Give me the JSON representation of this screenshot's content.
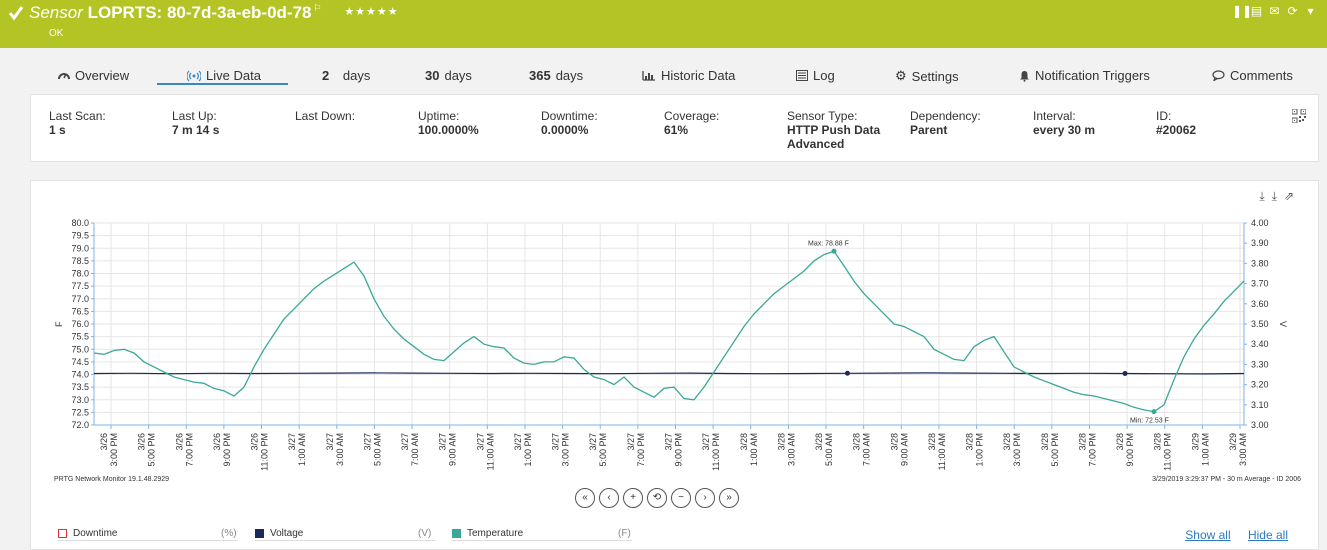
{
  "header": {
    "kind": "Sensor",
    "name": "LOPRTS: 80-7d-3a-eb-0d-78",
    "stars": "★★★★★",
    "status": "OK",
    "bg_color": "#b4c424"
  },
  "tabs": [
    {
      "label": "Overview",
      "icon": "overview-gauge-icon"
    },
    {
      "label": "Live Data",
      "icon": "live-data-broadcast-icon"
    },
    {
      "num": "2",
      "unit": "days"
    },
    {
      "num": "30",
      "unit": "days"
    },
    {
      "num": "365",
      "unit": "days"
    },
    {
      "label": "Historic Data",
      "icon": "bar-chart-icon"
    },
    {
      "label": "Log",
      "icon": "log-list-icon"
    },
    {
      "label": "Settings",
      "icon": "gear-icon"
    },
    {
      "label": "Notification Triggers",
      "icon": "bell-icon"
    },
    {
      "label": "Comments",
      "icon": "comment-icon"
    }
  ],
  "info": [
    {
      "label": "Last Scan:",
      "value": "1 s"
    },
    {
      "label": "Last Up:",
      "value": "7 m 14 s"
    },
    {
      "label": "Last Down:",
      "value": ""
    },
    {
      "label": "Uptime:",
      "value": "100.0000%"
    },
    {
      "label": "Downtime:",
      "value": "0.0000%"
    },
    {
      "label": "Coverage:",
      "value": "61%"
    },
    {
      "label": "Sensor Type:",
      "value": "HTTP Push Data Advanced"
    },
    {
      "label": "Dependency:",
      "value": "Parent"
    },
    {
      "label": "Interval:",
      "value": "every 30 m"
    },
    {
      "label": "ID:",
      "value": "#20062"
    }
  ],
  "footer": {
    "left": "PRTG Network Monitor 19.1.48.2929",
    "right": "3/29/2019 3:29:37 PM - 30 m Average - ID 2006"
  },
  "nav_buttons": [
    "«",
    "‹",
    "+",
    "⟲",
    "−",
    "›",
    "»"
  ],
  "legend": [
    {
      "name": "Downtime",
      "unit": "(%)",
      "color": "#e03030",
      "filled": false
    },
    {
      "name": "Voltage",
      "unit": "(V)",
      "color": "#1a2a5c",
      "filled": true
    },
    {
      "name": "Temperature",
      "unit": "(F)",
      "color": "#3aa898",
      "filled": true
    }
  ],
  "links": {
    "show_all": "Show all",
    "hide_all": "Hide all"
  },
  "chart_data": {
    "type": "line",
    "left_axis": {
      "label": "F",
      "min": 72.0,
      "max": 80.0,
      "ticks": [
        "72.0",
        "72.5",
        "73.0",
        "73.5",
        "74.0",
        "74.5",
        "75.0",
        "75.5",
        "76.0",
        "76.5",
        "77.0",
        "77.5",
        "78.0",
        "78.5",
        "79.0",
        "79.5",
        "80.0"
      ]
    },
    "right_axis": {
      "label": "V",
      "min": 3.0,
      "max": 4.0,
      "ticks": [
        "3.00",
        "3.10",
        "3.20",
        "3.30",
        "3.40",
        "3.50",
        "3.60",
        "3.70",
        "3.80",
        "3.90",
        "4.00"
      ]
    },
    "x_labels": [
      [
        "3/26",
        "3:00 PM"
      ],
      [
        "3/26",
        "5:00 PM"
      ],
      [
        "3/26",
        "7:00 PM"
      ],
      [
        "3/26",
        "9:00 PM"
      ],
      [
        "3/26",
        "11:00 PM"
      ],
      [
        "3/27",
        "1:00 AM"
      ],
      [
        "3/27",
        "3:00 AM"
      ],
      [
        "3/27",
        "5:00 AM"
      ],
      [
        "3/27",
        "7:00 AM"
      ],
      [
        "3/27",
        "9:00 AM"
      ],
      [
        "3/27",
        "11:00 AM"
      ],
      [
        "3/27",
        "1:00 PM"
      ],
      [
        "3/27",
        "3:00 PM"
      ],
      [
        "3/27",
        "5:00 PM"
      ],
      [
        "3/27",
        "7:00 PM"
      ],
      [
        "3/27",
        "9:00 PM"
      ],
      [
        "3/27",
        "11:00 PM"
      ],
      [
        "3/28",
        "1:00 AM"
      ],
      [
        "3/28",
        "3:00 AM"
      ],
      [
        "3/28",
        "5:00 AM"
      ],
      [
        "3/28",
        "7:00 AM"
      ],
      [
        "3/28",
        "9:00 AM"
      ],
      [
        "3/28",
        "11:00 AM"
      ],
      [
        "3/28",
        "1:00 PM"
      ],
      [
        "3/28",
        "3:00 PM"
      ],
      [
        "3/28",
        "5:00 PM"
      ],
      [
        "3/28",
        "7:00 PM"
      ],
      [
        "3/28",
        "9:00 PM"
      ],
      [
        "3/28",
        "11:00 PM"
      ],
      [
        "3/29",
        "1:00 AM"
      ],
      [
        "3/29",
        "3:00 AM"
      ]
    ],
    "series": [
      {
        "name": "Temperature",
        "unit": "F",
        "axis": "left",
        "color": "#3aa898",
        "values": [
          74.85,
          74.8,
          74.95,
          75.0,
          74.85,
          74.5,
          74.3,
          74.1,
          73.9,
          73.8,
          73.7,
          73.65,
          73.45,
          73.35,
          73.15,
          73.5,
          74.3,
          75.0,
          75.6,
          76.2,
          76.6,
          77.0,
          77.4,
          77.7,
          77.95,
          78.2,
          78.45,
          77.9,
          77.0,
          76.3,
          75.8,
          75.4,
          75.1,
          74.8,
          74.6,
          74.55,
          74.9,
          75.25,
          75.5,
          75.2,
          75.1,
          75.05,
          74.65,
          74.45,
          74.4,
          74.5,
          74.5,
          74.7,
          74.65,
          74.2,
          73.9,
          73.8,
          73.6,
          73.9,
          73.5,
          73.3,
          73.1,
          73.45,
          73.5,
          73.05,
          73.0,
          73.5,
          74.1,
          74.7,
          75.3,
          75.9,
          76.4,
          76.8,
          77.2,
          77.5,
          77.8,
          78.1,
          78.5,
          78.75,
          78.88,
          78.3,
          77.7,
          77.2,
          76.8,
          76.4,
          76.0,
          75.9,
          75.7,
          75.5,
          75.0,
          74.8,
          74.6,
          74.55,
          75.1,
          75.35,
          75.5,
          74.9,
          74.3,
          74.1,
          73.9,
          73.75,
          73.6,
          73.45,
          73.3,
          73.2,
          73.15,
          73.05,
          72.95,
          72.85,
          72.7,
          72.6,
          72.53,
          72.8,
          73.8,
          74.7,
          75.4,
          75.95,
          76.4,
          76.9,
          77.3,
          77.7
        ],
        "max_label": "Max: 78.88 F",
        "min_label": "Min: 72.53 F"
      },
      {
        "name": "Voltage",
        "unit": "V",
        "axis": "right",
        "color": "#1a2a5c",
        "values": [
          3.255,
          3.256,
          3.254,
          3.256,
          3.255,
          3.256,
          3.257,
          3.258,
          3.257,
          3.256,
          3.255,
          3.256,
          3.255,
          3.254,
          3.256,
          3.257,
          3.255,
          3.254,
          3.255,
          3.256,
          3.257,
          3.258,
          3.257,
          3.256,
          3.255,
          3.256,
          3.255,
          3.254,
          3.253,
          3.255
        ]
      }
    ]
  }
}
